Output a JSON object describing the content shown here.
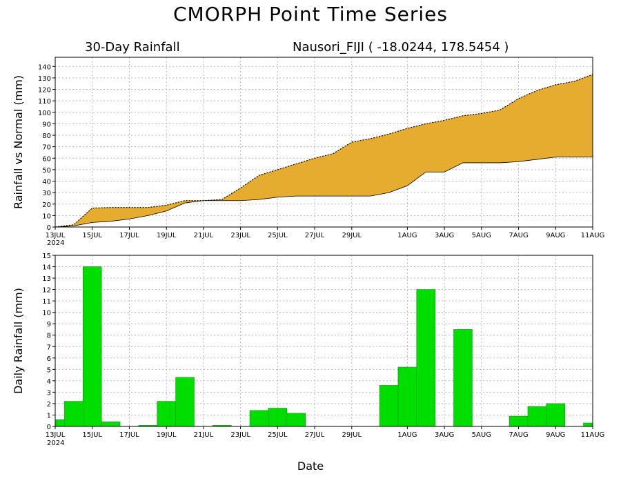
{
  "title": "CMORPH Point Time Series",
  "subtitle_left": "30-Day Rainfall",
  "subtitle_right": "Nausori_FIJI ( -18.0244, 178.5454 )",
  "xlabel": "Date",
  "x_ticks": [
    "13JUL",
    "15JUL",
    "17JUL",
    "19JUL",
    "21JUL",
    "23JUL",
    "25JUL",
    "27JUL",
    "29JUL",
    "1AUG",
    "3AUG",
    "5AUG",
    "7AUG",
    "9AUG",
    "11AUG"
  ],
  "x_year_label": "2024",
  "colors": {
    "above_normal": "#e6ac2f",
    "below_normal": "#2a3fe6",
    "bars": "#00dd00"
  },
  "chart_data": [
    {
      "type": "area",
      "ylabel": "Rainfall vs Normal (mm)",
      "ylim": [
        0,
        148
      ],
      "y_ticks": [
        0,
        10,
        20,
        30,
        40,
        50,
        60,
        70,
        80,
        90,
        100,
        110,
        120,
        130,
        140
      ],
      "grid": true,
      "x_dates": [
        "2024-07-13",
        "2024-07-14",
        "2024-07-15",
        "2024-07-16",
        "2024-07-17",
        "2024-07-18",
        "2024-07-19",
        "2024-07-20",
        "2024-07-21",
        "2024-07-22",
        "2024-07-23",
        "2024-07-24",
        "2024-07-25",
        "2024-07-26",
        "2024-07-27",
        "2024-07-28",
        "2024-07-29",
        "2024-07-30",
        "2024-07-31",
        "2024-08-01",
        "2024-08-02",
        "2024-08-03",
        "2024-08-04",
        "2024-08-05",
        "2024-08-06",
        "2024-08-07",
        "2024-08-08",
        "2024-08-09",
        "2024-08-10",
        "2024-08-11"
      ],
      "series": [
        {
          "values": [
            0,
            2,
            16.5,
            17,
            17,
            17,
            19,
            23,
            23,
            24,
            34,
            45,
            50,
            55,
            60,
            64,
            74,
            77,
            81,
            86,
            90,
            93,
            97,
            99,
            102,
            112,
            119,
            124,
            127,
            133
          ]
        },
        {
          "values": [
            0,
            1,
            4,
            5,
            7,
            10,
            14,
            21,
            23,
            23,
            23,
            24,
            26,
            27,
            27,
            27,
            27,
            27,
            30,
            36,
            48,
            48,
            56,
            56,
            56,
            57,
            59,
            61,
            61,
            61
          ]
        }
      ]
    },
    {
      "type": "bar",
      "ylabel": "Daily Rainfall (mm)",
      "ylim": [
        0,
        15
      ],
      "y_ticks": [
        0,
        1,
        2,
        3,
        4,
        5,
        6,
        7,
        8,
        9,
        10,
        11,
        12,
        13,
        14,
        15
      ],
      "grid": true,
      "x_dates": [
        "2024-07-13",
        "2024-07-14",
        "2024-07-15",
        "2024-07-16",
        "2024-07-17",
        "2024-07-18",
        "2024-07-19",
        "2024-07-20",
        "2024-07-21",
        "2024-07-22",
        "2024-07-23",
        "2024-07-24",
        "2024-07-25",
        "2024-07-26",
        "2024-07-27",
        "2024-07-28",
        "2024-07-29",
        "2024-07-30",
        "2024-07-31",
        "2024-08-01",
        "2024-08-02",
        "2024-08-03",
        "2024-08-04",
        "2024-08-05",
        "2024-08-06",
        "2024-08-07",
        "2024-08-08",
        "2024-08-09",
        "2024-08-10",
        "2024-08-11"
      ],
      "values": [
        0.6,
        2.2,
        14.0,
        0.4,
        0.0,
        0.1,
        2.2,
        4.3,
        0.0,
        0.1,
        0.0,
        1.4,
        1.6,
        1.15,
        0.0,
        0.0,
        0.0,
        0.0,
        3.6,
        5.2,
        12.0,
        0.0,
        8.5,
        0.0,
        0.0,
        0.9,
        1.75,
        2.0,
        0.0,
        0.3
      ]
    }
  ]
}
